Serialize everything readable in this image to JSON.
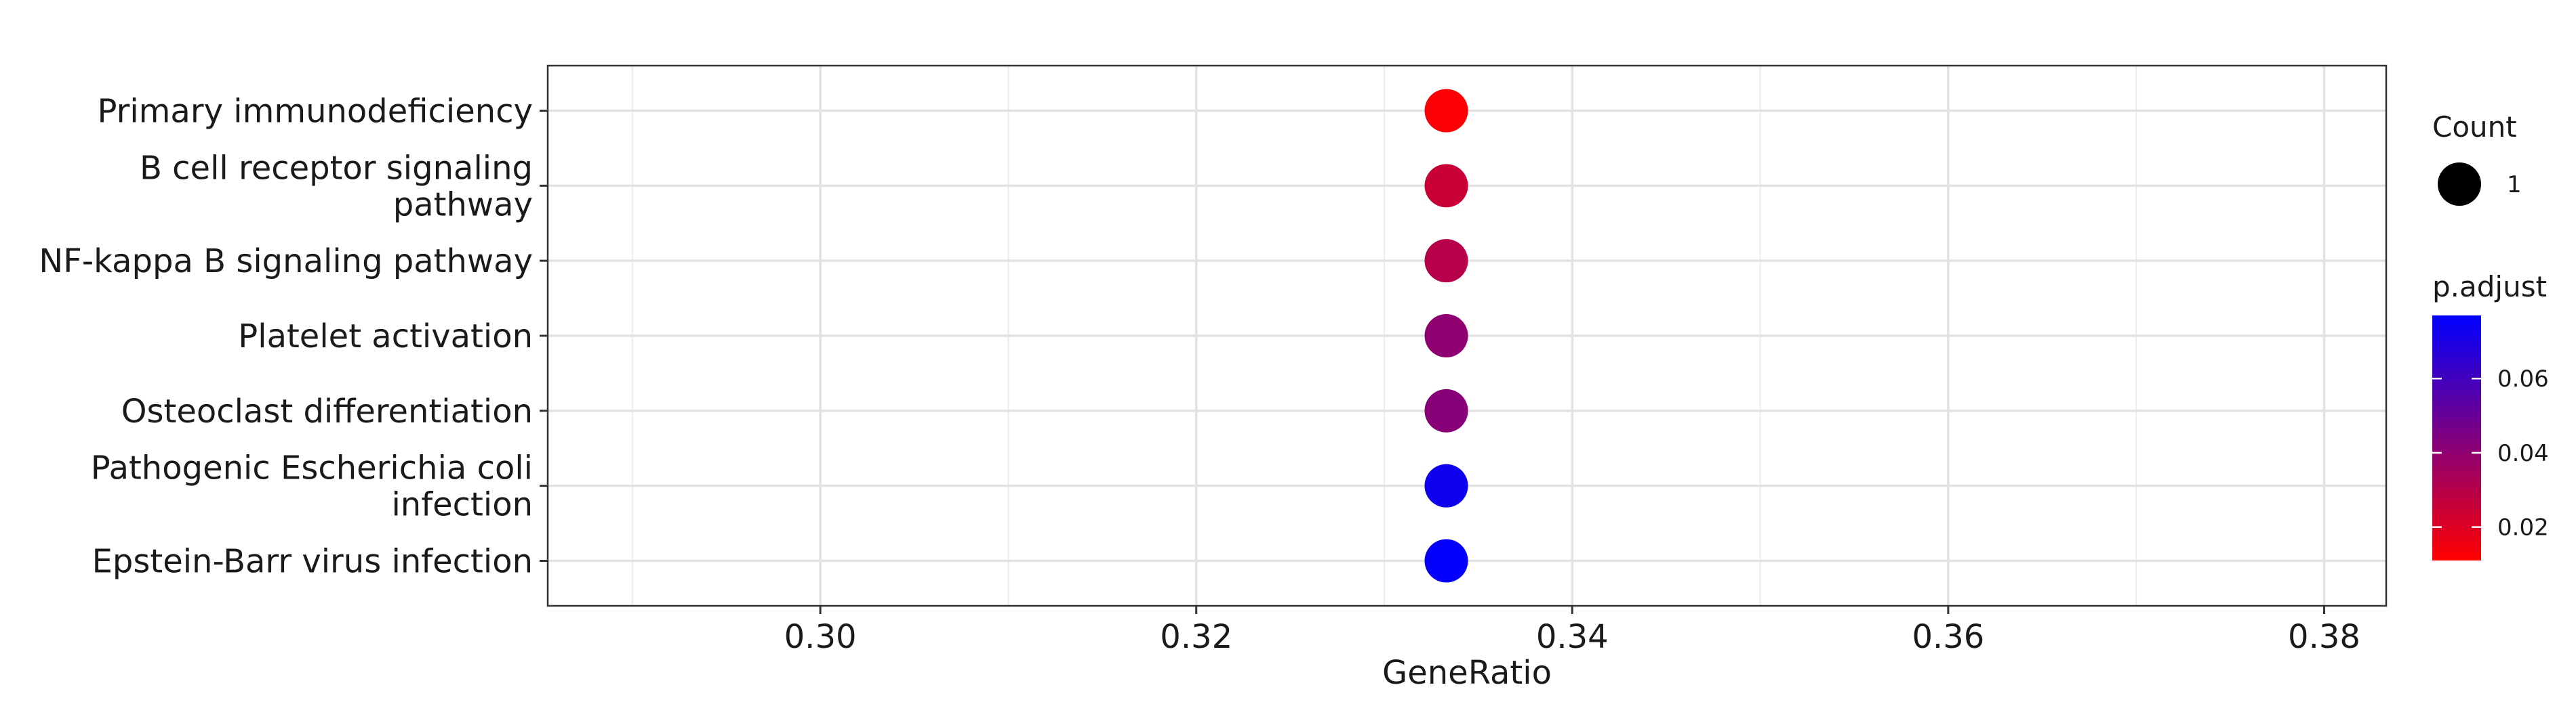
{
  "chart_data": {
    "type": "scatter",
    "title": "",
    "xlabel": "GeneRatio",
    "ylabel": "",
    "xlim": [
      0.2855,
      0.3833
    ],
    "x_ticks": [
      0.3,
      0.32,
      0.34,
      0.36,
      0.38
    ],
    "x_tick_labels": [
      "0.30",
      "0.32",
      "0.34",
      "0.36",
      "0.38"
    ],
    "grid": true,
    "categories": [
      "Primary immunodeficiency",
      "B cell receptor signaling\npathway",
      "NF-kappa B signaling pathway",
      "Platelet activation",
      "Osteoclast differentiation",
      "Pathogenic Escherichia coli\ninfection",
      "Epstein-Barr virus infection"
    ],
    "points": [
      {
        "category": "Primary immunodeficiency",
        "x": 0.3333,
        "count": 1,
        "p_adjust": 0.012
      },
      {
        "category": "B cell receptor signaling\npathway",
        "x": 0.3333,
        "count": 1,
        "p_adjust": 0.025
      },
      {
        "category": "NF-kappa B signaling pathway",
        "x": 0.3333,
        "count": 1,
        "p_adjust": 0.03
      },
      {
        "category": "Platelet activation",
        "x": 0.3333,
        "count": 1,
        "p_adjust": 0.04
      },
      {
        "category": "Osteoclast differentiation",
        "x": 0.3333,
        "count": 1,
        "p_adjust": 0.042
      },
      {
        "category": "Pathogenic Escherichia coli\ninfection",
        "x": 0.3333,
        "count": 1,
        "p_adjust": 0.073
      },
      {
        "category": "Epstein-Barr virus infection",
        "x": 0.3333,
        "count": 1,
        "p_adjust": 0.076
      }
    ],
    "legend": {
      "placement": "right",
      "size_title": "Count",
      "size_entries": [
        {
          "label": "1",
          "value": 1
        }
      ],
      "color_title": "p.adjust",
      "color_range": [
        0.011,
        0.077
      ],
      "color_ticks": [
        0.02,
        0.04,
        0.06
      ],
      "color_tick_labels": [
        "0.02",
        "0.04",
        "0.06"
      ],
      "color_low": "#ff0000",
      "color_high": "#0000ff"
    }
  }
}
